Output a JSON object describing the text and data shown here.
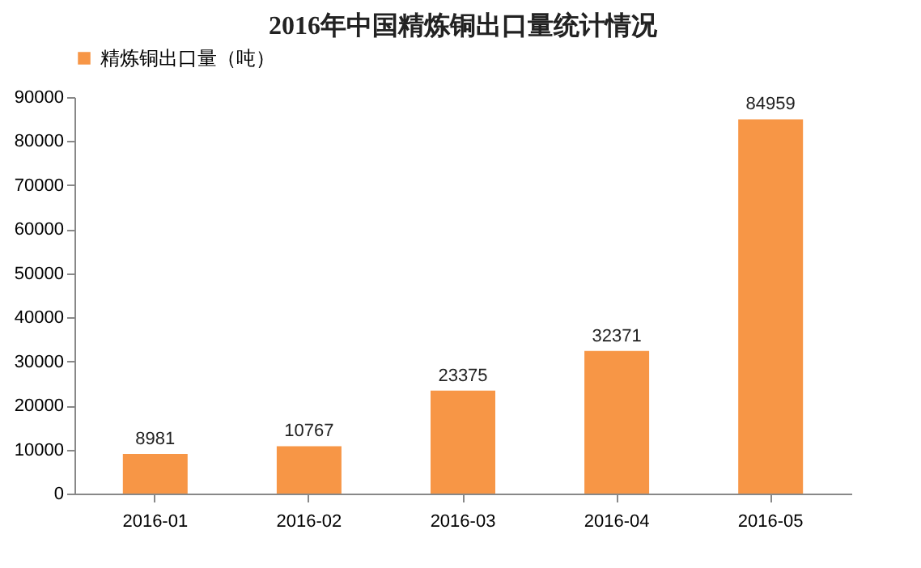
{
  "chart_data": {
    "type": "bar",
    "title": "2016年中国精炼铜出口量统计情况",
    "categories": [
      "2016-01",
      "2016-02",
      "2016-03",
      "2016-04",
      "2016-05"
    ],
    "series": [
      {
        "name": "精炼铜出口量（吨）",
        "color": "#f79646",
        "values": [
          8981,
          10767,
          23375,
          32371,
          84959
        ]
      }
    ],
    "ylim": [
      0,
      90000
    ],
    "yticks": [
      0,
      10000,
      20000,
      30000,
      40000,
      50000,
      60000,
      70000,
      80000,
      90000
    ],
    "data_labels": true,
    "legend": "top"
  }
}
